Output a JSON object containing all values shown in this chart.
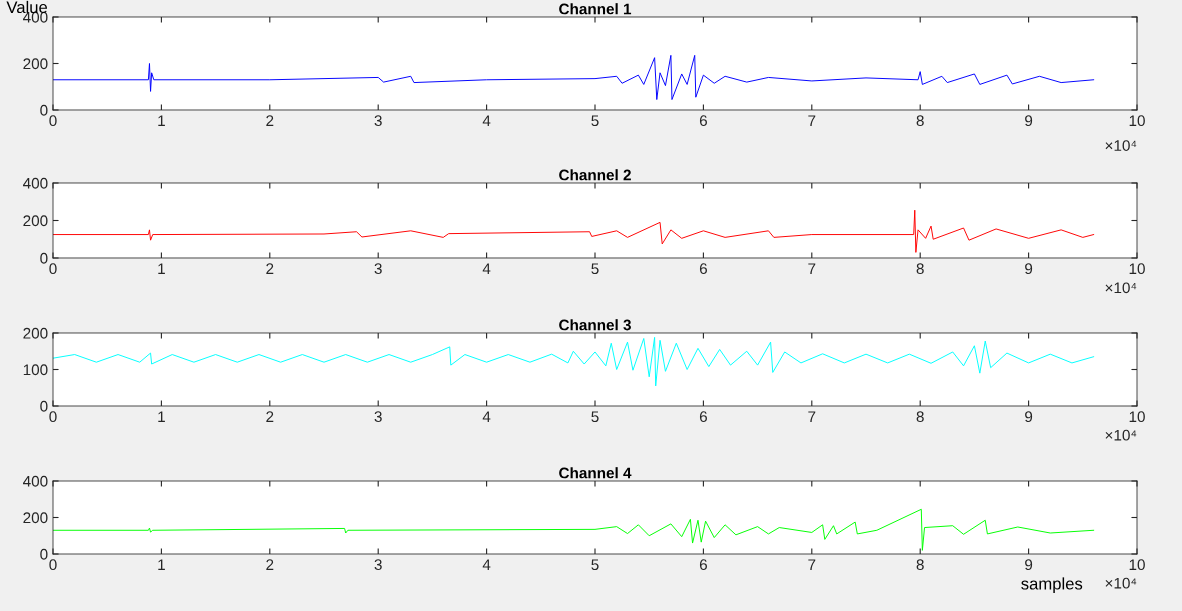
{
  "chart_data": [
    {
      "type": "line",
      "title": "Channel 1",
      "ylabel": "Value",
      "annotations": [
        "×10⁴"
      ],
      "xlim": [
        0,
        10
      ],
      "ylim": [
        0,
        400
      ],
      "yticks": [
        0,
        200,
        400
      ],
      "xticks": [
        0,
        1,
        2,
        3,
        4,
        5,
        6,
        7,
        8,
        9,
        10
      ],
      "series": [
        {
          "color": "#0000ff",
          "x": [
            0,
            0.88,
            0.89,
            0.9,
            0.91,
            0.93,
            2.0,
            3.0,
            3.05,
            3.3,
            3.33,
            4.0,
            5.0,
            5.2,
            5.25,
            5.4,
            5.45,
            5.55,
            5.57,
            5.6,
            5.65,
            5.7,
            5.71,
            5.8,
            5.85,
            5.92,
            5.93,
            6.0,
            6.1,
            6.2,
            6.4,
            6.6,
            7.0,
            7.5,
            7.98,
            8.0,
            8.02,
            8.2,
            8.25,
            8.5,
            8.55,
            8.8,
            8.85,
            9.1,
            9.3,
            9.6
          ],
          "values": [
            130,
            130,
            200,
            80,
            160,
            130,
            130,
            140,
            120,
            145,
            118,
            130,
            135,
            145,
            115,
            150,
            110,
            225,
            45,
            160,
            105,
            235,
            45,
            155,
            110,
            235,
            55,
            150,
            115,
            145,
            120,
            140,
            125,
            138,
            130,
            165,
            110,
            145,
            118,
            155,
            110,
            150,
            112,
            145,
            118,
            130
          ]
        }
      ]
    },
    {
      "type": "line",
      "title": "Channel 2",
      "annotations": [
        "×10⁴"
      ],
      "xlim": [
        0,
        10
      ],
      "ylim": [
        0,
        400
      ],
      "yticks": [
        0,
        200,
        400
      ],
      "xticks": [
        0,
        1,
        2,
        3,
        4,
        5,
        6,
        7,
        8,
        9,
        10
      ],
      "series": [
        {
          "color": "#ff0000",
          "x": [
            0,
            0.88,
            0.89,
            0.9,
            0.92,
            2.5,
            2.8,
            2.85,
            3.3,
            3.6,
            3.65,
            4.95,
            4.97,
            5.2,
            5.3,
            5.6,
            5.62,
            5.7,
            5.8,
            6.0,
            6.2,
            6.6,
            6.65,
            7.0,
            7.94,
            7.95,
            7.96,
            7.98,
            8.05,
            8.1,
            8.12,
            8.4,
            8.45,
            8.7,
            9.0,
            9.3,
            9.5,
            9.6
          ],
          "values": [
            125,
            125,
            150,
            95,
            125,
            128,
            140,
            112,
            145,
            110,
            130,
            140,
            115,
            145,
            110,
            190,
            75,
            150,
            105,
            145,
            110,
            145,
            110,
            125,
            125,
            255,
            30,
            150,
            105,
            170,
            100,
            160,
            95,
            155,
            105,
            150,
            110,
            125
          ]
        }
      ]
    },
    {
      "type": "line",
      "title": "Channel 3",
      "annotations": [
        "×10⁴"
      ],
      "xlim": [
        0,
        10
      ],
      "ylim": [
        0,
        200
      ],
      "yticks": [
        0,
        100,
        200
      ],
      "xticks": [
        0,
        1,
        2,
        3,
        4,
        5,
        6,
        7,
        8,
        9,
        10
      ],
      "series": [
        {
          "color": "#00ffff",
          "x": [
            0,
            0.2,
            0.4,
            0.6,
            0.8,
            0.9,
            0.91,
            1.1,
            1.3,
            1.5,
            1.7,
            1.9,
            2.1,
            2.3,
            2.5,
            2.7,
            2.9,
            3.1,
            3.3,
            3.5,
            3.66,
            3.67,
            3.8,
            4.0,
            4.2,
            4.4,
            4.6,
            4.75,
            4.8,
            4.9,
            5.0,
            5.1,
            5.15,
            5.2,
            5.3,
            5.35,
            5.45,
            5.5,
            5.55,
            5.56,
            5.6,
            5.65,
            5.75,
            5.85,
            5.95,
            6.05,
            6.15,
            6.25,
            6.4,
            6.5,
            6.62,
            6.64,
            6.75,
            6.9,
            7.1,
            7.3,
            7.5,
            7.7,
            7.9,
            8.1,
            8.3,
            8.4,
            8.5,
            8.55,
            8.6,
            8.65,
            8.8,
            9.0,
            9.2,
            9.4,
            9.6
          ],
          "values": [
            131,
            141,
            120,
            141,
            120,
            145,
            115,
            141,
            120,
            141,
            120,
            141,
            120,
            141,
            120,
            141,
            120,
            141,
            120,
            141,
            162,
            112,
            141,
            120,
            141,
            120,
            142,
            118,
            150,
            115,
            148,
            110,
            172,
            100,
            175,
            98,
            185,
            80,
            188,
            55,
            180,
            95,
            172,
            100,
            158,
            108,
            155,
            112,
            150,
            112,
            175,
            92,
            148,
            118,
            143,
            118,
            142,
            118,
            142,
            117,
            148,
            110,
            165,
            90,
            178,
            105,
            145,
            118,
            142,
            118,
            135
          ]
        }
      ]
    },
    {
      "type": "line",
      "title": "Channel 4",
      "xlabel": "samples",
      "annotations": [
        "×10⁴"
      ],
      "xlim": [
        0,
        10
      ],
      "ylim": [
        0,
        400
      ],
      "yticks": [
        0,
        200,
        400
      ],
      "xticks": [
        0,
        1,
        2,
        3,
        4,
        5,
        6,
        7,
        8,
        9,
        10
      ],
      "series": [
        {
          "color": "#00ff00",
          "x": [
            0,
            0.88,
            0.89,
            0.9,
            0.92,
            2.69,
            2.7,
            2.72,
            5.0,
            5.2,
            5.3,
            5.4,
            5.5,
            5.7,
            5.8,
            5.88,
            5.9,
            5.95,
            5.98,
            6.02,
            6.1,
            6.2,
            6.3,
            6.5,
            6.6,
            6.7,
            7.0,
            7.1,
            7.12,
            7.2,
            7.23,
            7.4,
            7.42,
            7.6,
            8.01,
            8.02,
            8.04,
            8.3,
            8.4,
            8.6,
            8.62,
            8.9,
            9.2,
            9.6
          ],
          "values": [
            130,
            130,
            142,
            120,
            130,
            140,
            115,
            130,
            135,
            150,
            112,
            160,
            100,
            165,
            95,
            190,
            60,
            185,
            65,
            180,
            90,
            160,
            105,
            150,
            110,
            145,
            118,
            160,
            80,
            155,
            110,
            175,
            110,
            130,
            245,
            20,
            145,
            155,
            108,
            185,
            110,
            148,
            115,
            130
          ]
        }
      ]
    }
  ]
}
